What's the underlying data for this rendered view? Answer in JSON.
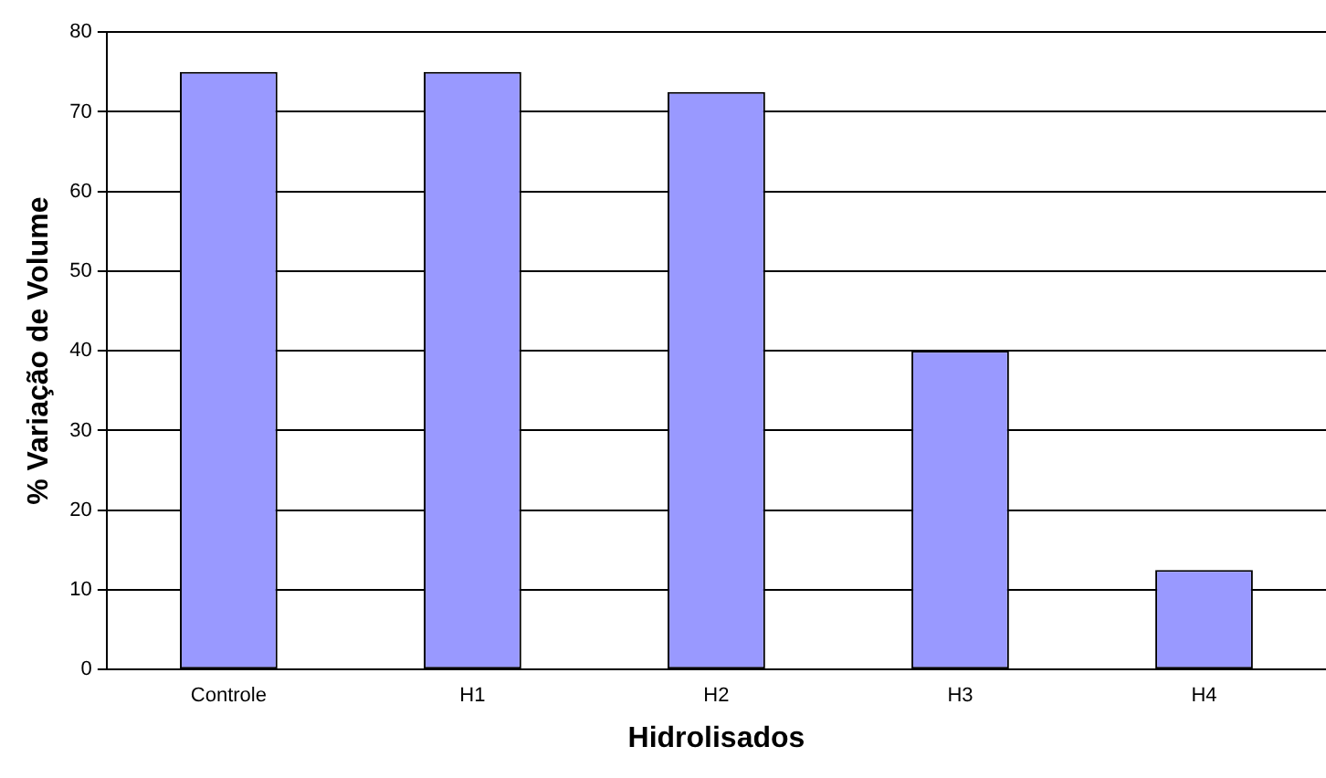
{
  "chart_data": {
    "type": "bar",
    "xlabel": "Hidrolisados",
    "ylabel": "% Variação de Volume",
    "categories": [
      "Controle",
      "H1",
      "H2",
      "H3",
      "H4"
    ],
    "values": [
      75,
      75,
      72.5,
      40,
      12.5
    ],
    "color": "#9999ff",
    "ylim": [
      0,
      80
    ],
    "yticks": [
      0,
      10,
      20,
      30,
      40,
      50,
      60,
      70,
      80
    ],
    "grid": "y"
  }
}
